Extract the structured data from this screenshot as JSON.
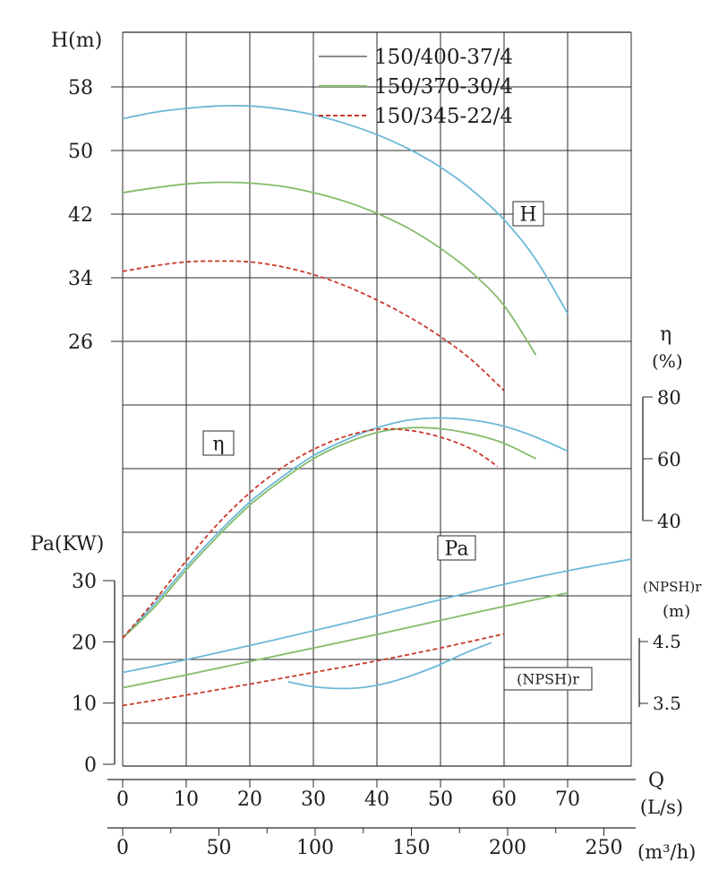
{
  "page": {
    "background": "#ffffff"
  },
  "legend": {
    "items": [
      {
        "label": "150/400-37/4",
        "swatch_color": "#8a8a8a",
        "dash": ""
      },
      {
        "label": "150/370-30/4",
        "swatch_color": "#86bb6a",
        "dash": ""
      },
      {
        "label": "150/345-22/4",
        "swatch_color": "#c9392c",
        "dash": "5 3"
      }
    ]
  },
  "axis_labels": {
    "h": "H(m)",
    "pa": "Pa(KW)",
    "eta": "η",
    "eta_unit": "(%)",
    "npsh": "(NPSH)r",
    "npsh_unit": "(m)",
    "q": "Q",
    "q_unit": "(L/s)",
    "m3h_unit": "(m³/h)"
  },
  "curve_labels": {
    "h": "H",
    "eta": "η",
    "pa": "Pa",
    "npsh": "(NPSH)r"
  },
  "chart_data": {
    "type": "line",
    "grid": true,
    "legend_position": "top-center",
    "x": {
      "label": "Q",
      "units": [
        "L/s",
        "m³/h"
      ],
      "range_ls": [
        0,
        80
      ],
      "ticks_ls": [
        0,
        10,
        20,
        30,
        40,
        50,
        60,
        70
      ],
      "ticks_m3h": [
        0,
        50,
        100,
        150,
        200,
        250
      ]
    },
    "y_axes": {
      "H": {
        "label": "H(m)",
        "ticks": [
          58,
          50,
          42,
          34,
          26
        ]
      },
      "Pa": {
        "label": "Pa(KW)",
        "ticks": [
          30,
          20,
          10,
          0
        ]
      },
      "eta": {
        "label": "η (%)",
        "ticks": [
          80,
          60,
          40
        ]
      },
      "NPSHr": {
        "label": "(NPSH)r (m)",
        "ticks": [
          4.5,
          3.5
        ]
      }
    },
    "series": [
      {
        "name": "150/400-37/4",
        "color": "#6cb8d8",
        "dash": "",
        "H": {
          "Q": [
            0,
            5,
            10,
            15,
            20,
            25,
            30,
            35,
            40,
            45,
            50,
            55,
            60,
            65,
            70
          ],
          "values": [
            54,
            54.8,
            55.3,
            55.6,
            55.6,
            55.2,
            54.5,
            53.4,
            52,
            50.2,
            47.9,
            45,
            41.3,
            36.3,
            29.5
          ]
        },
        "eta": {
          "Q": [
            0,
            5,
            10,
            15,
            20,
            25,
            30,
            35,
            40,
            45,
            50,
            55,
            60,
            65,
            70
          ],
          "values": [
            2,
            13,
            25,
            36,
            46,
            54,
            61,
            66,
            70,
            72.5,
            73.2,
            72.5,
            70.5,
            67,
            62.5
          ]
        },
        "Pa": {
          "Q": [
            0,
            10,
            20,
            30,
            40,
            50,
            60,
            70,
            80
          ],
          "values": [
            15,
            17.1,
            19.4,
            21.8,
            24.3,
            26.9,
            29.4,
            31.6,
            33.5
          ]
        },
        "NPSHr": {
          "Q": [
            26,
            30,
            34,
            38,
            42,
            46,
            50,
            54,
            58
          ],
          "values": [
            3.85,
            3.77,
            3.74,
            3.76,
            3.84,
            3.97,
            4.13,
            4.32,
            4.48
          ]
        }
      },
      {
        "name": "150/370-30/4",
        "color": "#86bb6a",
        "dash": "",
        "H": {
          "Q": [
            0,
            5,
            10,
            15,
            20,
            25,
            30,
            35,
            40,
            45,
            50,
            55,
            60,
            65
          ],
          "values": [
            44.7,
            45.3,
            45.8,
            46,
            45.9,
            45.5,
            44.7,
            43.6,
            42.1,
            40.2,
            37.7,
            34.6,
            30.5,
            24.3
          ]
        },
        "eta": {
          "Q": [
            0,
            5,
            10,
            15,
            20,
            25,
            30,
            35,
            40,
            45,
            50,
            55,
            60,
            65
          ],
          "values": [
            2,
            12,
            24,
            35,
            45,
            53,
            60,
            65,
            68.5,
            70,
            69.7,
            68,
            65,
            60
          ]
        },
        "Pa": {
          "Q": [
            0,
            10,
            20,
            30,
            40,
            50,
            60,
            70
          ],
          "values": [
            12.5,
            14.6,
            16.8,
            19,
            21.2,
            23.5,
            25.8,
            28
          ]
        }
      },
      {
        "name": "150/345-22/4",
        "color": "#c9392c",
        "dash": "5 3",
        "H": {
          "Q": [
            0,
            5,
            10,
            15,
            20,
            25,
            30,
            35,
            40,
            45,
            50,
            55,
            60
          ],
          "values": [
            34.8,
            35.5,
            36,
            36.1,
            36,
            35.4,
            34.4,
            33,
            31.2,
            29.1,
            26.6,
            23.6,
            19.8
          ]
        },
        "eta": {
          "Q": [
            0,
            5,
            10,
            15,
            20,
            25,
            30,
            35,
            40,
            45,
            50,
            55,
            59
          ],
          "values": [
            2,
            14,
            27,
            39,
            49,
            57,
            63,
            67.2,
            69.5,
            69.2,
            67,
            63,
            57.5
          ]
        },
        "Pa": {
          "Q": [
            0,
            10,
            20,
            30,
            40,
            50,
            60
          ],
          "values": [
            9.6,
            11.3,
            13.1,
            15,
            16.9,
            19,
            21.3
          ]
        }
      }
    ]
  }
}
